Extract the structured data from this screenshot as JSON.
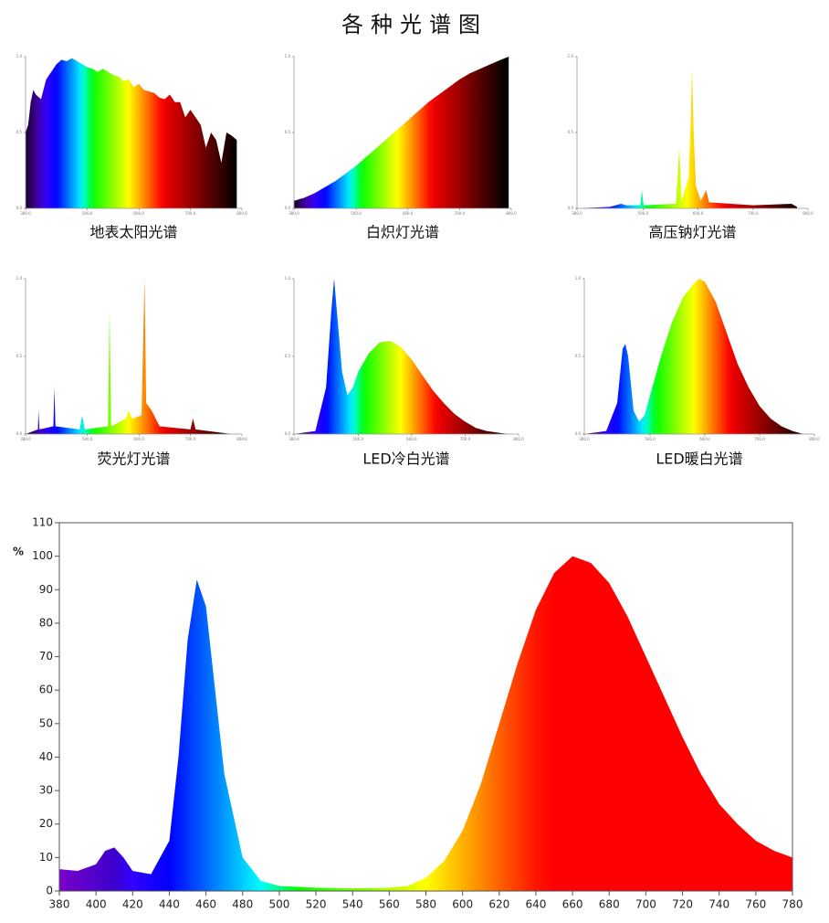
{
  "title": "各种光谱图",
  "chart_data": [
    {
      "type": "area",
      "title": "地表太阳光谱",
      "fill": "spectrum-dark",
      "x": [
        380,
        385,
        390,
        395,
        400,
        410,
        420,
        430,
        440,
        450,
        460,
        470,
        480,
        490,
        500,
        510,
        520,
        530,
        540,
        550,
        560,
        570,
        580,
        590,
        600,
        610,
        620,
        630,
        640,
        650,
        660,
        670,
        680,
        690,
        700,
        710,
        720,
        730,
        740,
        750,
        760,
        770,
        780,
        790
      ],
      "values": [
        0.5,
        0.55,
        0.7,
        0.78,
        0.75,
        0.72,
        0.85,
        0.9,
        0.95,
        0.98,
        0.97,
        0.99,
        0.97,
        0.95,
        0.93,
        0.92,
        0.9,
        0.92,
        0.9,
        0.88,
        0.87,
        0.84,
        0.85,
        0.8,
        0.82,
        0.78,
        0.77,
        0.76,
        0.73,
        0.72,
        0.75,
        0.7,
        0.7,
        0.6,
        0.65,
        0.6,
        0.55,
        0.4,
        0.5,
        0.45,
        0.3,
        0.5,
        0.48,
        0.45
      ],
      "xlim": [
        380,
        800
      ],
      "ylim": [
        0,
        1
      ],
      "xticks": [
        {
          "value": 380,
          "label": "380.0"
        },
        {
          "value": 500,
          "label": "500.0"
        },
        {
          "value": 600,
          "label": "600.0"
        },
        {
          "value": 700,
          "label": "700.0"
        },
        {
          "value": 800,
          "label": "800.0"
        }
      ],
      "yticks": [
        {
          "value": 0,
          "label": "0.0"
        },
        {
          "value": 0.5,
          "label": "0.5"
        },
        {
          "value": 1,
          "label": "1.0"
        }
      ]
    },
    {
      "type": "area",
      "title": "白炽灯光谱",
      "fill": "spectrum-dark",
      "x": [
        380,
        400,
        420,
        440,
        460,
        480,
        500,
        520,
        540,
        560,
        580,
        600,
        620,
        640,
        660,
        680,
        700,
        720,
        740,
        760,
        780,
        795
      ],
      "values": [
        0.05,
        0.07,
        0.1,
        0.14,
        0.18,
        0.23,
        0.28,
        0.34,
        0.4,
        0.46,
        0.52,
        0.58,
        0.64,
        0.7,
        0.75,
        0.8,
        0.85,
        0.89,
        0.92,
        0.95,
        0.98,
        1.0
      ],
      "xlim": [
        380,
        800
      ],
      "ylim": [
        0,
        1
      ],
      "xticks": [
        {
          "value": 380,
          "label": "380.0"
        },
        {
          "value": 500,
          "label": "500.0"
        },
        {
          "value": 600,
          "label": "600.0"
        },
        {
          "value": 700,
          "label": "700.0"
        },
        {
          "value": 800,
          "label": "800.0"
        }
      ],
      "yticks": [
        {
          "value": 0,
          "label": "0.0"
        },
        {
          "value": 0.5,
          "label": "0.5"
        },
        {
          "value": 1,
          "label": "1.0"
        }
      ]
    },
    {
      "type": "area",
      "title": "高压钠灯光谱",
      "fill": "spectrum-dark",
      "x": [
        380,
        440,
        460,
        470,
        495,
        498,
        501,
        560,
        566,
        570,
        583,
        587,
        589,
        592,
        596,
        605,
        615,
        620,
        700,
        770,
        780
      ],
      "values": [
        0,
        0.01,
        0.03,
        0.02,
        0.02,
        0.12,
        0.02,
        0.03,
        0.4,
        0.05,
        0.2,
        0.6,
        0.92,
        0.5,
        0.15,
        0.05,
        0.12,
        0.04,
        0.02,
        0.03,
        0.01
      ],
      "xlim": [
        380,
        800
      ],
      "ylim": [
        0,
        1
      ],
      "xticks": [
        {
          "value": 380,
          "label": "380.0"
        },
        {
          "value": 500,
          "label": "500.0"
        },
        {
          "value": 600,
          "label": "600.0"
        },
        {
          "value": 700,
          "label": "700.0"
        },
        {
          "value": 800,
          "label": "800.0"
        }
      ],
      "yticks": [
        {
          "value": 0,
          "label": "0.0"
        },
        {
          "value": 0.5,
          "label": "0.5"
        },
        {
          "value": 1,
          "label": "1.0"
        }
      ]
    },
    {
      "type": "area",
      "title": "荧光灯光谱",
      "fill": "spectrum-dark",
      "x": [
        380,
        404,
        405,
        407,
        434,
        436,
        438,
        485,
        490,
        495,
        540,
        543,
        546,
        575,
        580,
        587,
        605,
        611,
        614,
        625,
        640,
        700,
        705,
        710,
        780
      ],
      "values": [
        0,
        0.03,
        0.15,
        0.03,
        0.05,
        0.3,
        0.05,
        0.03,
        0.12,
        0.03,
        0.05,
        0.8,
        0.05,
        0.1,
        0.15,
        0.1,
        0.12,
        1.0,
        0.2,
        0.15,
        0.05,
        0.03,
        0.1,
        0.03,
        0
      ],
      "xlim": [
        380,
        800
      ],
      "ylim": [
        0,
        1
      ],
      "xticks": [
        {
          "value": 380,
          "label": "380.0"
        },
        {
          "value": 500,
          "label": "500.0"
        },
        {
          "value": 600,
          "label": "600.0"
        },
        {
          "value": 700,
          "label": "700.0"
        },
        {
          "value": 800,
          "label": "800.0"
        }
      ],
      "yticks": [
        {
          "value": 0,
          "label": "0.0"
        },
        {
          "value": 0.5,
          "label": "0.5"
        },
        {
          "value": 1,
          "label": "1.0"
        }
      ]
    },
    {
      "type": "area",
      "title": "LED冷白光谱",
      "fill": "spectrum-dark",
      "x": [
        380,
        420,
        440,
        450,
        455,
        460,
        470,
        480,
        490,
        500,
        520,
        540,
        560,
        580,
        600,
        620,
        640,
        660,
        680,
        700,
        720,
        740,
        780
      ],
      "values": [
        0,
        0.02,
        0.3,
        0.8,
        1.0,
        0.8,
        0.4,
        0.25,
        0.3,
        0.4,
        0.52,
        0.59,
        0.6,
        0.56,
        0.48,
        0.38,
        0.28,
        0.2,
        0.13,
        0.08,
        0.04,
        0.02,
        0
      ],
      "xlim": [
        380,
        800
      ],
      "ylim": [
        0,
        1
      ],
      "xticks": [
        {
          "value": 380,
          "label": "380.0"
        },
        {
          "value": 500,
          "label": "500.0"
        },
        {
          "value": 600,
          "label": "600.0"
        },
        {
          "value": 700,
          "label": "700.0"
        },
        {
          "value": 800,
          "label": "800.0"
        }
      ],
      "yticks": [
        {
          "value": 0,
          "label": "0.0"
        },
        {
          "value": 0.5,
          "label": "0.5"
        },
        {
          "value": 1,
          "label": "1.0"
        }
      ]
    },
    {
      "type": "area",
      "title": "LED暖白光谱",
      "fill": "spectrum-dark",
      "x": [
        380,
        420,
        440,
        450,
        455,
        460,
        470,
        480,
        490,
        500,
        520,
        540,
        560,
        580,
        590,
        600,
        620,
        640,
        660,
        680,
        700,
        720,
        740,
        760,
        780
      ],
      "values": [
        0,
        0.02,
        0.2,
        0.55,
        0.58,
        0.5,
        0.15,
        0.08,
        0.12,
        0.25,
        0.5,
        0.72,
        0.88,
        0.97,
        1.0,
        0.98,
        0.85,
        0.65,
        0.45,
        0.3,
        0.18,
        0.1,
        0.05,
        0.02,
        0
      ],
      "xlim": [
        380,
        800
      ],
      "ylim": [
        0,
        1
      ],
      "xticks": [
        {
          "value": 380,
          "label": "380.0"
        },
        {
          "value": 500,
          "label": "500.0"
        },
        {
          "value": 600,
          "label": "600.0"
        },
        {
          "value": 700,
          "label": "700.0"
        },
        {
          "value": 800,
          "label": "800.0"
        }
      ],
      "yticks": [
        {
          "value": 0,
          "label": "0.0"
        },
        {
          "value": 0.5,
          "label": "0.5"
        },
        {
          "value": 1,
          "label": "1.0"
        }
      ]
    },
    {
      "type": "area",
      "y_label": "%",
      "fill": "spectrum-bright",
      "frame": true,
      "x": [
        380,
        390,
        400,
        405,
        410,
        415,
        420,
        430,
        440,
        445,
        450,
        455,
        460,
        465,
        470,
        480,
        490,
        500,
        520,
        540,
        560,
        570,
        580,
        590,
        600,
        610,
        620,
        630,
        640,
        650,
        660,
        670,
        680,
        690,
        700,
        710,
        720,
        730,
        740,
        750,
        760,
        770,
        780
      ],
      "values": [
        6.5,
        6,
        8,
        12,
        13,
        10,
        6,
        5,
        15,
        40,
        75,
        93,
        85,
        60,
        35,
        10,
        3,
        1.5,
        1,
        0.8,
        1,
        1.5,
        4,
        9,
        18,
        32,
        50,
        68,
        84,
        95,
        100,
        98,
        92,
        82,
        70,
        58,
        46,
        35,
        26,
        20,
        15,
        12,
        10
      ],
      "xlim": [
        380,
        780
      ],
      "ylim": [
        0,
        110
      ],
      "xticks": [
        380,
        400,
        420,
        440,
        460,
        480,
        500,
        520,
        540,
        560,
        580,
        600,
        620,
        640,
        660,
        680,
        700,
        720,
        740,
        760,
        780
      ],
      "yticks": [
        0,
        10,
        20,
        30,
        40,
        50,
        60,
        70,
        80,
        90,
        100,
        110
      ]
    }
  ]
}
